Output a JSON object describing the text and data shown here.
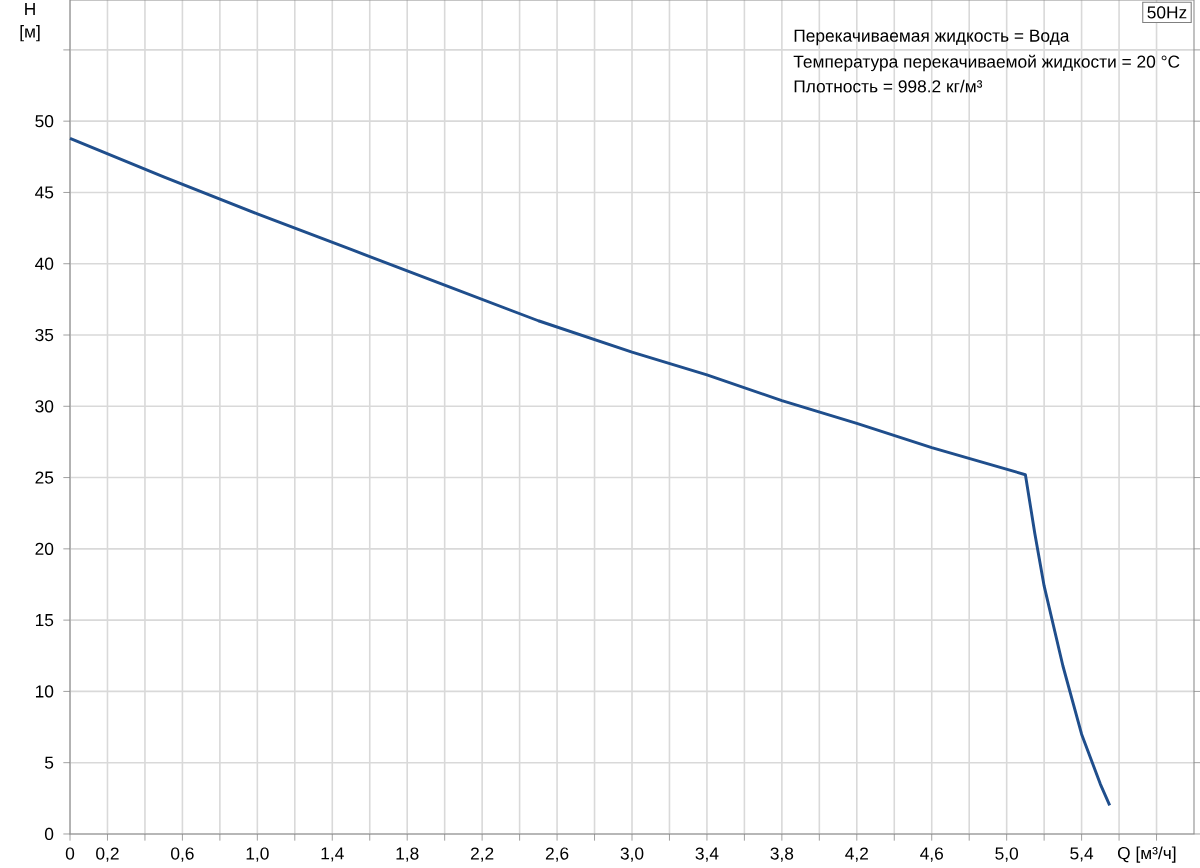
{
  "chart_data": {
    "type": "line",
    "xlabel": "Q [м³/ч]",
    "ylabel": "H [м]",
    "annotations": [
      "50Hz",
      "Перекачиваемая жидкость = Вода",
      "Температура перекачиваемой жидкости = 20 °C",
      "Плотность = 998.2 кг/м³"
    ],
    "xlim": [
      0,
      6.0
    ],
    "ylim": [
      0,
      58.5
    ],
    "xticks": [
      {
        "value": 0,
        "label": "0"
      },
      {
        "value": 0.2,
        "label": "0,2"
      },
      {
        "value": 0.4,
        "label": null
      },
      {
        "value": 0.6,
        "label": "0,6"
      },
      {
        "value": 0.8,
        "label": null
      },
      {
        "value": 1.0,
        "label": "1,0"
      },
      {
        "value": 1.2,
        "label": null
      },
      {
        "value": 1.4,
        "label": "1,4"
      },
      {
        "value": 1.6,
        "label": null
      },
      {
        "value": 1.8,
        "label": "1,8"
      },
      {
        "value": 2.0,
        "label": null
      },
      {
        "value": 2.2,
        "label": "2,2"
      },
      {
        "value": 2.4,
        "label": null
      },
      {
        "value": 2.6,
        "label": "2,6"
      },
      {
        "value": 2.8,
        "label": null
      },
      {
        "value": 3.0,
        "label": "3,0"
      },
      {
        "value": 3.2,
        "label": null
      },
      {
        "value": 3.4,
        "label": "3,4"
      },
      {
        "value": 3.6,
        "label": null
      },
      {
        "value": 3.8,
        "label": "3,8"
      },
      {
        "value": 4.0,
        "label": null
      },
      {
        "value": 4.2,
        "label": "4,2"
      },
      {
        "value": 4.4,
        "label": null
      },
      {
        "value": 4.6,
        "label": "4,6"
      },
      {
        "value": 4.8,
        "label": null
      },
      {
        "value": 5.0,
        "label": "5,0"
      },
      {
        "value": 5.2,
        "label": null
      },
      {
        "value": 5.4,
        "label": "5,4"
      },
      {
        "value": 5.6,
        "label": null
      },
      {
        "value": 5.8,
        "label": null
      }
    ],
    "yticks": [
      0,
      5,
      10,
      15,
      20,
      25,
      30,
      35,
      40,
      45,
      50,
      {
        "value": 55,
        "label": null
      }
    ],
    "grid": true,
    "series": [
      {
        "color": "#1f4e8c",
        "x": [
          0,
          0.5,
          1.0,
          1.5,
          2.0,
          2.5,
          3.0,
          3.4,
          3.8,
          4.2,
          4.6,
          5.1,
          5.15,
          5.2,
          5.3,
          5.4,
          5.5,
          5.55
        ],
        "values": [
          48.8,
          46.1,
          43.5,
          41.0,
          38.5,
          36.0,
          33.8,
          32.2,
          30.4,
          28.8,
          27.1,
          25.2,
          21.1,
          17.4,
          11.8,
          7.0,
          3.5,
          2.0
        ]
      }
    ]
  }
}
